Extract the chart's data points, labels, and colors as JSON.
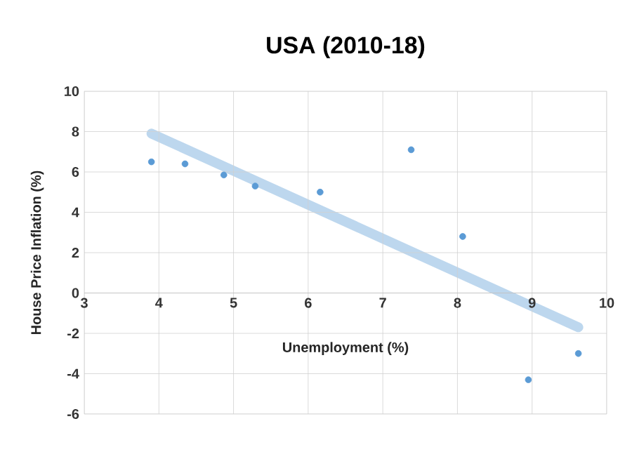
{
  "chart_data": {
    "type": "scatter",
    "title": "USA (2010-18)",
    "xlabel": "Unemployment (%)",
    "ylabel": "House Price Inflation (%)",
    "xlim": [
      3,
      10
    ],
    "ylim": [
      -6,
      10
    ],
    "xticks": [
      3,
      4,
      5,
      6,
      7,
      8,
      9,
      10
    ],
    "yticks": [
      -6,
      -4,
      -2,
      0,
      2,
      4,
      6,
      8,
      10
    ],
    "grid": true,
    "series": [
      {
        "color": "#5b9bd5",
        "marker": "circle",
        "x": [
          3.9,
          4.35,
          4.87,
          5.29,
          6.16,
          7.38,
          8.07,
          8.95,
          9.62
        ],
        "values": [
          6.5,
          6.4,
          5.85,
          5.3,
          5.0,
          7.1,
          2.8,
          -4.3,
          -3.0
        ]
      },
      {
        "type": "line",
        "marker": "none",
        "color": "#bdd7ee",
        "x": [
          3.9,
          9.62
        ],
        "values": [
          7.9,
          -1.7
        ]
      }
    ]
  }
}
